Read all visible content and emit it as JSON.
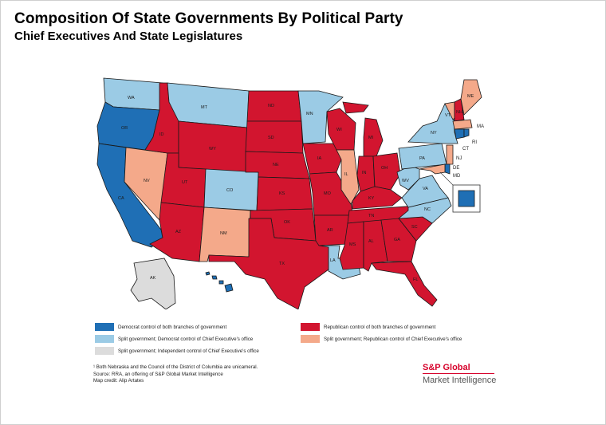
{
  "header": {
    "title": "Composition Of State Governments By Political Party",
    "subtitle": "Chief Executives And State Legislatures"
  },
  "colors": {
    "dem_both": "#1f6fb5",
    "split_dem_exec": "#9bcbe5",
    "split_ind_exec": "#dcdcdc",
    "rep_both": "#d2152f",
    "split_rep_exec": "#f4a98a"
  },
  "legend": [
    {
      "key": "dem_both",
      "label": "Democrat control of both branches of government"
    },
    {
      "key": "rep_both",
      "label": "Republican control of both branches of government"
    },
    {
      "key": "split_dem_exec",
      "label": "Split government; Democrat control of Chief Executive's office"
    },
    {
      "key": "split_rep_exec",
      "label": "Split government; Republican control of Chief Executive's office"
    },
    {
      "key": "split_ind_exec",
      "label": "Split government; Independent control of Chief Executive's office"
    }
  ],
  "states": {
    "WA": {
      "label": "WA",
      "status": "split_dem_exec"
    },
    "OR": {
      "label": "OR",
      "status": "dem_both"
    },
    "CA": {
      "label": "CA",
      "status": "dem_both"
    },
    "NV": {
      "label": "NV",
      "status": "split_rep_exec"
    },
    "ID": {
      "label": "ID",
      "status": "rep_both"
    },
    "MT": {
      "label": "MT",
      "status": "split_dem_exec"
    },
    "WY": {
      "label": "WY",
      "status": "rep_both"
    },
    "UT": {
      "label": "UT",
      "status": "rep_both"
    },
    "AZ": {
      "label": "AZ",
      "status": "rep_both"
    },
    "CO": {
      "label": "CO",
      "status": "split_dem_exec"
    },
    "NM": {
      "label": "NM",
      "status": "split_rep_exec"
    },
    "ND": {
      "label": "ND",
      "status": "rep_both"
    },
    "SD": {
      "label": "SD",
      "status": "rep_both"
    },
    "NE": {
      "label": "NE",
      "status": "rep_both"
    },
    "KS": {
      "label": "KS",
      "status": "rep_both"
    },
    "OK": {
      "label": "OK",
      "status": "rep_both"
    },
    "TX": {
      "label": "TX",
      "status": "rep_both"
    },
    "MN": {
      "label": "MN",
      "status": "split_dem_exec"
    },
    "IA": {
      "label": "IA",
      "status": "rep_both"
    },
    "MO": {
      "label": "MO",
      "status": "rep_both"
    },
    "AR": {
      "label": "AR",
      "status": "rep_both"
    },
    "LA": {
      "label": "LA",
      "status": "split_dem_exec"
    },
    "WI": {
      "label": "WI",
      "status": "rep_both"
    },
    "IL": {
      "label": "IL",
      "status": "split_rep_exec"
    },
    "MI": {
      "label": "MI",
      "status": "rep_both"
    },
    "IN": {
      "label": "IN",
      "status": "rep_both"
    },
    "OH": {
      "label": "OH",
      "status": "rep_both"
    },
    "KY": {
      "label": "KY",
      "status": "rep_both"
    },
    "TN": {
      "label": "TN",
      "status": "rep_both"
    },
    "MS": {
      "label": "MS",
      "status": "rep_both"
    },
    "AL": {
      "label": "AL",
      "status": "rep_both"
    },
    "GA": {
      "label": "GA",
      "status": "rep_both"
    },
    "FL": {
      "label": "FL",
      "status": "rep_both"
    },
    "SC": {
      "label": "SC",
      "status": "rep_both"
    },
    "NC": {
      "label": "NC",
      "status": "split_dem_exec"
    },
    "VA": {
      "label": "VA",
      "status": "split_dem_exec"
    },
    "WV": {
      "label": "WV",
      "status": "split_dem_exec"
    },
    "PA": {
      "label": "PA",
      "status": "split_dem_exec"
    },
    "NY": {
      "label": "NY",
      "status": "split_dem_exec"
    },
    "VT": {
      "label": "VT",
      "status": "split_rep_exec"
    },
    "NH": {
      "label": "NH",
      "status": "rep_both"
    },
    "ME": {
      "label": "ME",
      "status": "split_rep_exec"
    },
    "MA": {
      "label": "MA",
      "status": "split_rep_exec"
    },
    "RI": {
      "label": "RI",
      "status": "dem_both"
    },
    "CT": {
      "label": "CT",
      "status": "dem_both"
    },
    "NJ": {
      "label": "NJ",
      "status": "split_rep_exec"
    },
    "DE": {
      "label": "DE",
      "status": "dem_both"
    },
    "MD": {
      "label": "MD",
      "status": "split_rep_exec"
    },
    "DC": {
      "label": "",
      "status": "dem_both"
    },
    "AK": {
      "label": "AK",
      "status": "split_ind_exec"
    },
    "HI": {
      "label": "",
      "status": "dem_both"
    }
  },
  "notes": [
    "¹ Both Nebraska and the Council of the District of Columbia are unicameral.",
    "Source: RRA, an offering of S&P Global Market Intelligence",
    "Map credit: Alip Artates"
  ],
  "brand": {
    "line1": "S&P Global",
    "line2": "Market Intelligence"
  }
}
